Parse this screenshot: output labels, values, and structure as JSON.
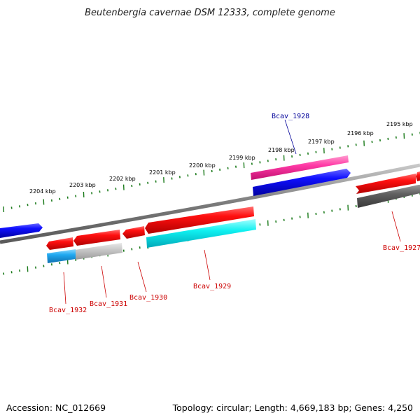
{
  "title": "Beutenbergia cavernae DSM 12333, complete genome",
  "footer": {
    "accession": "Accession: NC_012669",
    "topology": "Topology: circular; Length: 4,669,183 bp; Genes: 4,250"
  },
  "colors": {
    "backbone": "#8a8a8a",
    "tick": "#1a7a1a",
    "label_red": "#cc0000",
    "label_blue": "#000099"
  },
  "ticks": [
    {
      "label": "2195 kbp"
    },
    {
      "label": "2196 kbp"
    },
    {
      "label": "2197 kbp"
    },
    {
      "label": "2198 kbp"
    },
    {
      "label": "2199 kbp"
    },
    {
      "label": "2200 kbp"
    },
    {
      "label": "2201 kbp"
    },
    {
      "label": "2202 kbp"
    },
    {
      "label": "2203 kbp"
    },
    {
      "label": "2204 kbp"
    }
  ],
  "gene_labels": [
    {
      "text": "Bcav_1928",
      "color": "#000099"
    },
    {
      "text": "Bcav_1927",
      "color": "#cc0000"
    },
    {
      "text": "Bcav_1929",
      "color": "#cc0000"
    },
    {
      "text": "Bcav_1930",
      "color": "#cc0000"
    },
    {
      "text": "Bcav_1931",
      "color": "#cc0000"
    },
    {
      "text": "Bcav_1932",
      "color": "#cc0000"
    }
  ]
}
